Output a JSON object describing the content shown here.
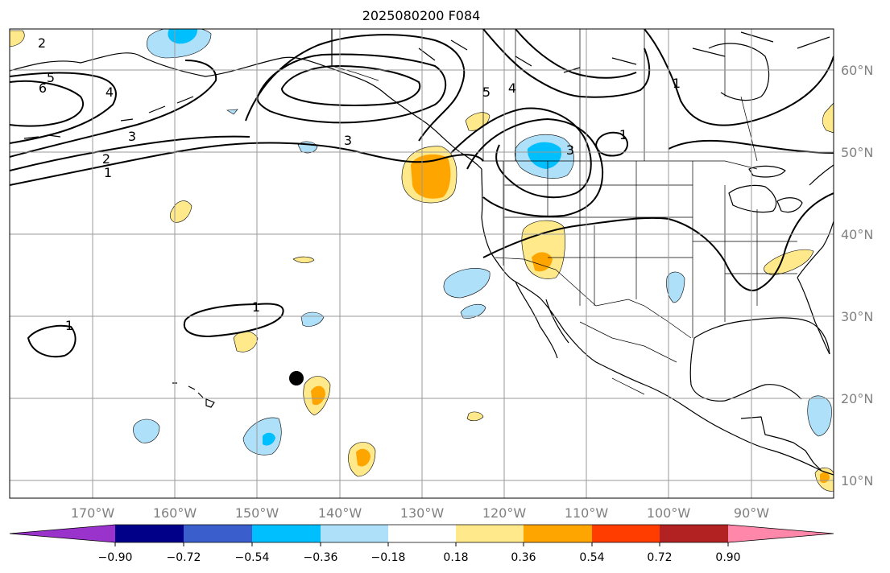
{
  "title": "2025080200 F084",
  "colors": {
    "neg_090": "#9933cc",
    "neg_072": "#000088",
    "neg_054": "#3a5fcd",
    "neg_036": "#00bfff",
    "neg_018": "#aee0fa",
    "zero": "#ffffff",
    "pos_018": "#ffe98a",
    "pos_036": "#ffa500",
    "pos_054": "#ff3d00",
    "pos_072": "#b22222",
    "pos_090": "#ff88aa"
  },
  "longitude_labels": [
    "170°W",
    "160°W",
    "150°W",
    "140°W",
    "130°W",
    "120°W",
    "110°W",
    "100°W",
    "90°W"
  ],
  "latitude_labels": [
    "60°N",
    "50°N",
    "40°N",
    "30°N",
    "20°N",
    "10°N"
  ],
  "contour_labels": [
    "2",
    "5",
    "6",
    "4",
    "3",
    "2",
    "1",
    "3",
    "5",
    "4",
    "3",
    "1",
    "1",
    "1",
    "1"
  ],
  "colorbar": {
    "ticks": [
      "−0.90",
      "−0.72",
      "−0.54",
      "−0.36",
      "−0.18",
      "0.18",
      "0.36",
      "0.54",
      "0.72",
      "0.90"
    ]
  },
  "marker": "black-dot"
}
